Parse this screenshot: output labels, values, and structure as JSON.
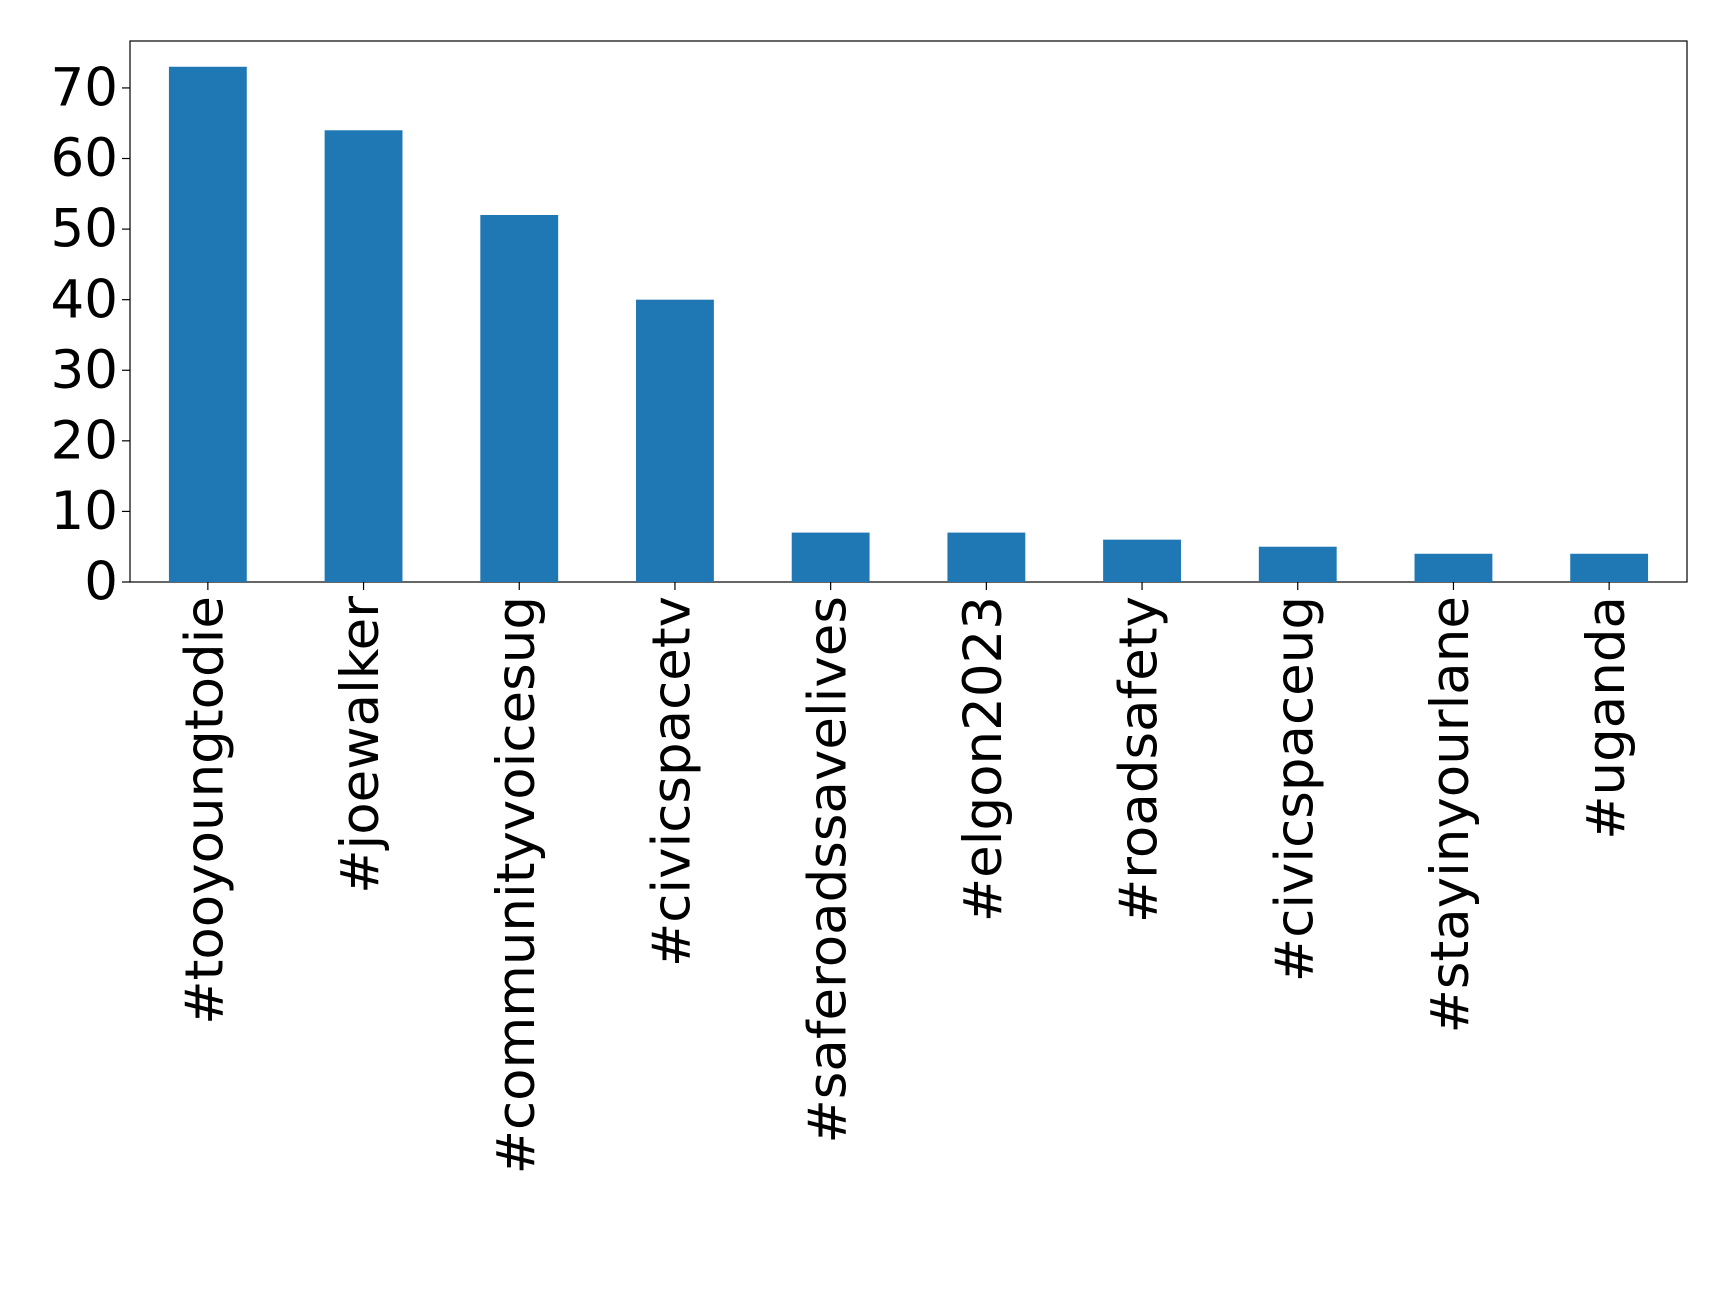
{
  "chart_data": {
    "type": "bar",
    "categories": [
      "#tooyoungtodie",
      "#joewalker",
      "#communityvoicesug",
      "#civicspacetv",
      "#saferoadssavelives",
      "#elgon2023",
      "#roadsafety",
      "#civicspaceug",
      "#stayinyourlane",
      "#uganda"
    ],
    "values": [
      73,
      64,
      52,
      40,
      7,
      7,
      6,
      5,
      4,
      4
    ],
    "color": "#1f77b4",
    "ylim": [
      0,
      76.65
    ],
    "yticks": [
      0,
      10,
      20,
      30,
      40,
      50,
      60,
      70
    ],
    "grid": false
  }
}
